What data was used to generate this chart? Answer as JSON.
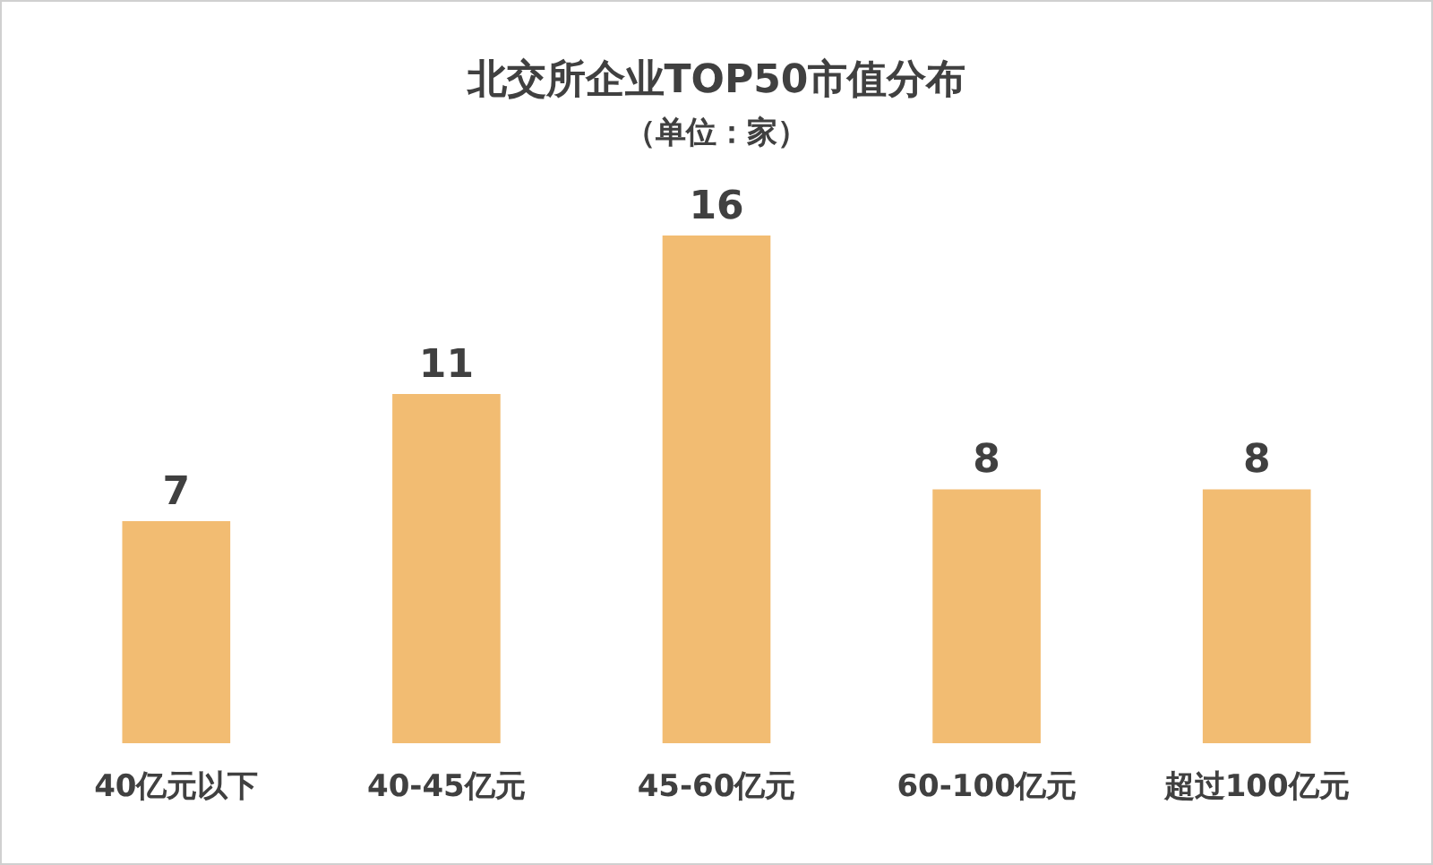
{
  "chart_data": {
    "type": "bar",
    "title": "北交所企业TOP50市值分布",
    "subtitle": "（单位：家）",
    "categories": [
      "40亿元以下",
      "40-45亿元",
      "45-60亿元",
      "60-100亿元",
      "超过100亿元"
    ],
    "values": [
      7,
      11,
      16,
      8,
      8
    ],
    "color": "#f2bc72",
    "data_labels": true
  }
}
